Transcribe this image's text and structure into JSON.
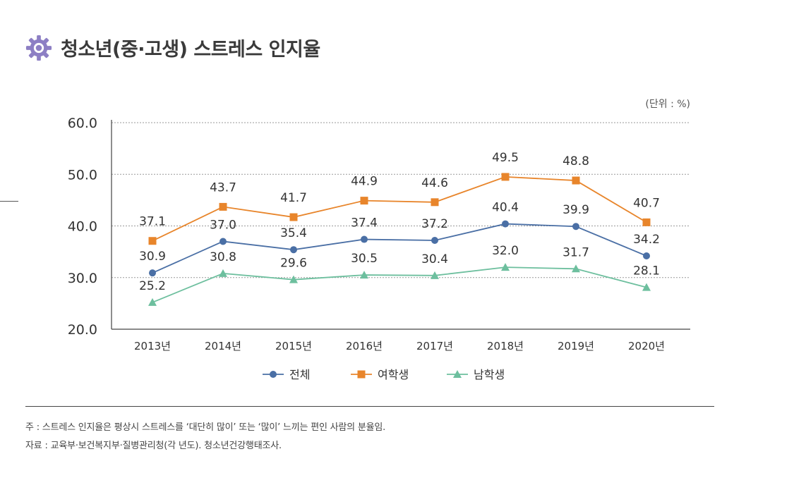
{
  "title": "청소년(중·고생) 스트레스 인지율",
  "icon": "gear-icon",
  "chart_data": {
    "type": "line",
    "unit_label": "(단위 : %)",
    "categories": [
      "2013년",
      "2014년",
      "2015년",
      "2016년",
      "2017년",
      "2018년",
      "2019년",
      "2020년"
    ],
    "ylim": [
      20,
      60
    ],
    "yticks": [
      "20.0",
      "30.0",
      "40.0",
      "50.0",
      "60.0"
    ],
    "grid": true,
    "series": [
      {
        "name": "전체",
        "color": "#4a6fa5",
        "marker": "circle",
        "values": [
          30.9,
          37.0,
          35.4,
          37.4,
          37.2,
          40.4,
          39.9,
          34.2
        ],
        "labels": [
          "30.9",
          "37.0",
          "35.4",
          "37.4",
          "37.2",
          "40.4",
          "39.9",
          "34.2"
        ]
      },
      {
        "name": "여학생",
        "color": "#e8852b",
        "marker": "square",
        "values": [
          37.1,
          43.7,
          41.7,
          44.9,
          44.6,
          49.5,
          48.8,
          40.7
        ],
        "labels": [
          "37.1",
          "43.7",
          "41.7",
          "44.9",
          "44.6",
          "49.5",
          "48.8",
          "40.7"
        ]
      },
      {
        "name": "남학생",
        "color": "#6dbf9e",
        "marker": "triangle",
        "values": [
          25.2,
          30.8,
          29.6,
          30.5,
          30.4,
          32.0,
          31.7,
          28.1
        ],
        "labels": [
          "25.2",
          "30.8",
          "29.6",
          "30.5",
          "30.4",
          "32.0",
          "31.7",
          "28.1"
        ]
      }
    ],
    "legend_position": "bottom-center"
  },
  "notes": {
    "note1": "주 : 스트레스 인지율은 평상시 스트레스를 ‘대단히 많이’ 또는 ‘많이’ 느끼는 편인 사람의 분율임.",
    "note2": "자료 : 교육부·보건복지부·질병관리청(각 년도). 청소년건강행태조사."
  }
}
